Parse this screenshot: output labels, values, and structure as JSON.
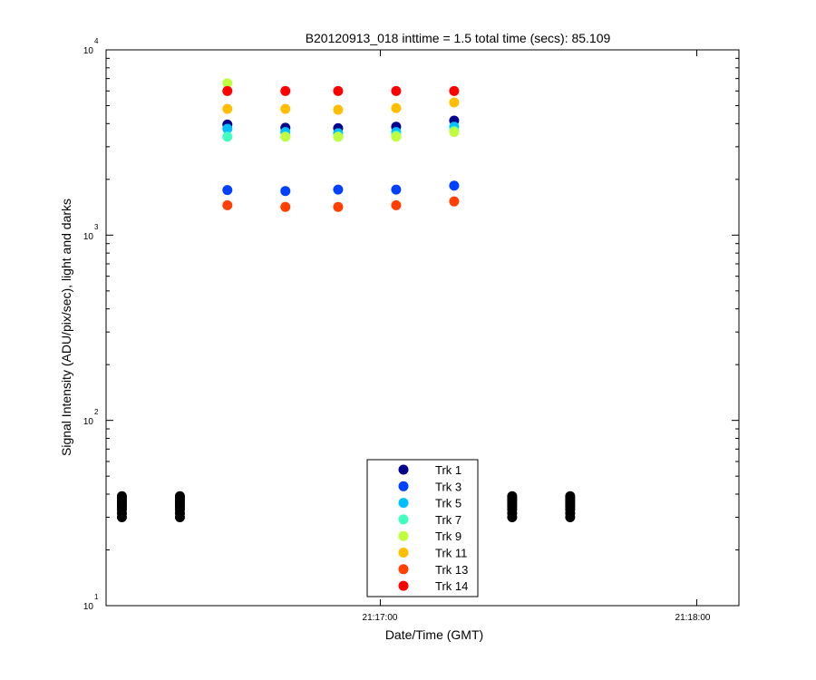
{
  "chart_data": {
    "type": "scatter",
    "title": "B20120913_018 inttime = 1.5 total time (secs): 85.109",
    "xlabel": "Date/Time (GMT)",
    "ylabel": "Signal Intensity (ADU/pix/sec), light and darks",
    "yscale": "log",
    "ylim": [
      10,
      10000
    ],
    "xlim": [
      "21:16:08",
      "21:18:08"
    ],
    "x_ticks": [
      "21:17:00",
      "21:18:00"
    ],
    "y_ticks": [
      {
        "base": "10",
        "exp": "1"
      },
      {
        "base": "10",
        "exp": "2"
      },
      {
        "base": "10",
        "exp": "3"
      },
      {
        "base": "10",
        "exp": "4"
      }
    ],
    "grid": false,
    "legend_position": "bottom-center",
    "series": [
      {
        "name": "Trk 1",
        "color": "#00008f",
        "points": [
          [
            "21:16:31",
            3950
          ],
          [
            "21:16:42",
            3800
          ],
          [
            "21:16:52",
            3780
          ],
          [
            "21:17:03",
            3850
          ],
          [
            "21:17:14",
            4150
          ]
        ]
      },
      {
        "name": "Trk 3",
        "color": "#0040ff",
        "points": [
          [
            "21:16:31",
            1750
          ],
          [
            "21:16:42",
            1730
          ],
          [
            "21:16:52",
            1760
          ],
          [
            "21:17:03",
            1760
          ],
          [
            "21:17:14",
            1850
          ]
        ]
      },
      {
        "name": "Trk 5",
        "color": "#00bfff",
        "points": [
          [
            "21:16:31",
            3750
          ],
          [
            "21:16:42",
            3600
          ],
          [
            "21:16:52",
            3550
          ],
          [
            "21:17:03",
            3600
          ],
          [
            "21:17:14",
            3850
          ]
        ]
      },
      {
        "name": "Trk 7",
        "color": "#40ffbf",
        "points": [
          [
            "21:16:31",
            3400
          ],
          [
            "21:16:42",
            3400
          ],
          [
            "21:16:52",
            3400
          ],
          [
            "21:17:03",
            3450
          ],
          [
            "21:17:14",
            3650
          ]
        ]
      },
      {
        "name": "Trk 9",
        "color": "#bfff40",
        "points": [
          [
            "21:16:31",
            6600
          ],
          [
            "21:16:42",
            3400
          ],
          [
            "21:16:52",
            3400
          ],
          [
            "21:17:03",
            3400
          ],
          [
            "21:17:14",
            3600
          ]
        ]
      },
      {
        "name": "Trk 11",
        "color": "#ffbf00",
        "points": [
          [
            "21:16:31",
            4800
          ],
          [
            "21:16:42",
            4800
          ],
          [
            "21:16:52",
            4750
          ],
          [
            "21:17:03",
            4850
          ],
          [
            "21:17:14",
            5200
          ]
        ]
      },
      {
        "name": "Trk 13",
        "color": "#ff4000",
        "points": [
          [
            "21:16:31",
            1450
          ],
          [
            "21:16:42",
            1420
          ],
          [
            "21:16:52",
            1420
          ],
          [
            "21:17:03",
            1450
          ],
          [
            "21:17:14",
            1520
          ]
        ]
      },
      {
        "name": "Trk 14",
        "color": "#ff0000",
        "points": [
          [
            "21:16:31",
            6000
          ],
          [
            "21:16:42",
            6000
          ],
          [
            "21:16:52",
            6000
          ],
          [
            "21:17:03",
            6000
          ],
          [
            "21:17:14",
            6000
          ]
        ]
      }
    ],
    "darks": {
      "color": "#000000",
      "times": [
        "21:16:11",
        "21:16:22",
        "21:17:25",
        "21:17:36"
      ],
      "values": [
        30,
        31.5,
        33,
        34,
        35,
        36,
        37,
        38,
        39
      ]
    }
  }
}
